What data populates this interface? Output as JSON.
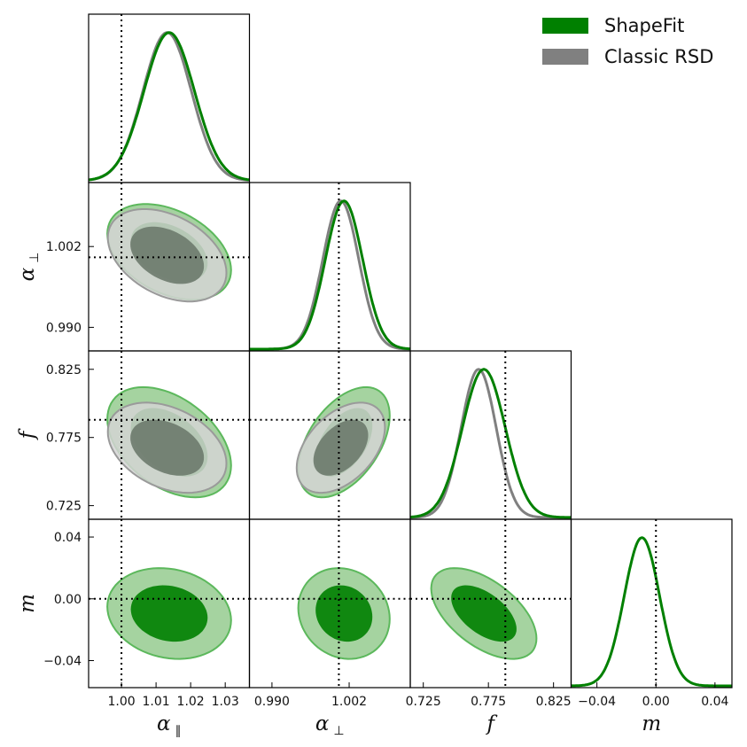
{
  "legend": [
    {
      "label": "ShapeFit",
      "color": "#008000"
    },
    {
      "label": "Classic RSD",
      "color": "#808080"
    }
  ],
  "chart_data": {
    "type": "triangle-corner",
    "parameters": [
      {
        "key": "apar",
        "symbol": "α",
        "sub": "∥",
        "range": [
          0.9905,
          1.037
        ],
        "ticks": [
          1.0,
          1.01,
          1.02,
          1.03
        ],
        "tick_labels": [
          "1.00",
          "1.01",
          "1.02",
          "1.03"
        ],
        "truth": 1.0,
        "mean": {
          "ShapeFit": 1.0138,
          "Classic RSD": 1.0132
        },
        "sigma": {
          "ShapeFit": 0.0073,
          "Classic RSD": 0.007
        }
      },
      {
        "key": "aperp",
        "symbol": "α",
        "sub": "⊥",
        "range": [
          0.9865,
          1.0115
        ],
        "ticks": [
          0.99,
          1.002
        ],
        "tick_labels": [
          "0.990",
          "1.002"
        ],
        "truth": 1.0004,
        "mean": {
          "ShapeFit": 1.0012,
          "Classic RSD": 1.0007
        },
        "sigma": {
          "ShapeFit": 0.0029,
          "Classic RSD": 0.0028
        }
      },
      {
        "key": "f",
        "symbol": "f",
        "sub": "",
        "range": [
          0.715,
          0.8385
        ],
        "ticks": [
          0.725,
          0.775,
          0.825
        ],
        "tick_labels": [
          "0.725",
          "0.775",
          "0.825"
        ],
        "truth": 0.788,
        "mean": {
          "ShapeFit": 0.7715,
          "Classic RSD": 0.7675
        },
        "sigma": {
          "ShapeFit": 0.0165,
          "Classic RSD": 0.0135
        }
      },
      {
        "key": "m",
        "symbol": "m",
        "sub": "",
        "range": [
          -0.0575,
          0.0515
        ],
        "ticks": [
          -0.04,
          0.0,
          0.04
        ],
        "tick_labels": [
          "−0.04",
          "0.00",
          "0.04"
        ],
        "truth": 0.0,
        "mean": {
          "ShapeFit": -0.0095
        },
        "sigma": {
          "ShapeFit": 0.012
        }
      }
    ],
    "series": [
      {
        "name": "ShapeFit",
        "color": "#008000"
      },
      {
        "name": "Classic RSD",
        "color": "#808080"
      }
    ],
    "contour_levels": [
      "68%",
      "95%"
    ],
    "correlations": {
      "apar_aperp": {
        "ShapeFit": -0.38,
        "Classic RSD": -0.38
      },
      "apar_f": {
        "ShapeFit": -0.42,
        "Classic RSD": -0.35
      },
      "aperp_f": {
        "ShapeFit": 0.48,
        "Classic RSD": 0.45
      },
      "apar_m": {
        "ShapeFit": -0.15
      },
      "aperp_m": {
        "ShapeFit": -0.12
      },
      "f_m": {
        "ShapeFit": -0.55
      }
    }
  }
}
